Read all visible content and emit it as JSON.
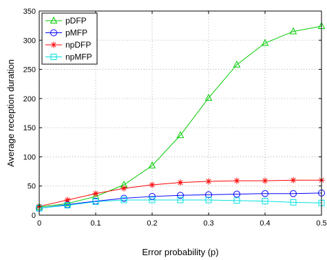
{
  "chart_data": {
    "type": "line",
    "xlabel": "Error probability (p)",
    "ylabel": "Average reception duration",
    "xlim": [
      0,
      0.5
    ],
    "ylim": [
      0,
      350
    ],
    "grid": true,
    "legend_position": "top-left",
    "x_ticks": [
      0,
      0.1,
      0.2,
      0.3,
      0.4,
      0.5
    ],
    "x_tick_labels": [
      "0",
      "0.1",
      "0.2",
      "0.3",
      "0.4",
      "0.5"
    ],
    "y_ticks": [
      0,
      50,
      100,
      150,
      200,
      250,
      300,
      350
    ],
    "y_tick_labels": [
      "0",
      "50",
      "100",
      "150",
      "200",
      "250",
      "300",
      "350"
    ],
    "x": [
      0,
      0.05,
      0.1,
      0.15,
      0.2,
      0.25,
      0.3,
      0.35,
      0.4,
      0.45,
      0.5
    ],
    "series": [
      {
        "name": "pDFP",
        "color": "#00cc00",
        "marker": "triangle",
        "values": [
          14,
          20,
          32,
          52,
          85,
          137,
          201,
          258,
          295,
          315,
          324
        ]
      },
      {
        "name": "pMFP",
        "color": "#0000ff",
        "marker": "circle",
        "values": [
          12,
          18,
          24,
          29,
          32,
          34,
          35,
          36,
          37,
          37,
          38
        ]
      },
      {
        "name": "npDFP",
        "color": "#ff0000",
        "marker": "asterisk",
        "values": [
          15,
          26,
          37,
          46,
          52,
          56,
          58,
          59,
          59,
          60,
          60
        ]
      },
      {
        "name": "npMFP",
        "color": "#00e0e0",
        "marker": "square",
        "values": [
          12,
          17,
          23,
          26,
          26,
          26,
          26,
          25,
          24,
          22,
          21
        ]
      }
    ]
  }
}
